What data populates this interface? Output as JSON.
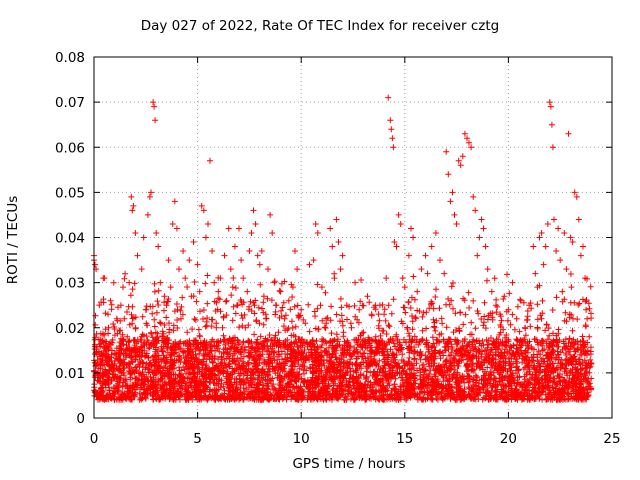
{
  "chart_data": {
    "type": "scatter",
    "title": "Day 027 of 2022, Rate Of TEC Index for receiver cztg",
    "xlabel": "GPS time / hours",
    "ylabel": "ROTI / TECUs",
    "xlim": [
      0,
      25
    ],
    "ylim": [
      0,
      0.08
    ],
    "xticks": [
      0,
      5,
      10,
      15,
      20,
      25
    ],
    "xtick_labels": [
      "0",
      "5",
      "10",
      "15",
      "20",
      "25"
    ],
    "yticks": [
      0,
      0.01,
      0.02,
      0.03,
      0.04,
      0.05,
      0.06,
      0.07,
      0.08
    ],
    "ytick_labels": [
      "0",
      "0.01",
      "0.02",
      "0.03",
      "0.04",
      "0.05",
      "0.06",
      "0.07",
      "0.08"
    ],
    "grid": true,
    "marker": "+",
    "color": "#ff0000",
    "series": [
      {
        "name": "ROTI",
        "points": [
          [
            0.0,
            0.036
          ],
          [
            0.0,
            0.035
          ],
          [
            0.05,
            0.034
          ],
          [
            0.1,
            0.033
          ],
          [
            0.15,
            0.012
          ],
          [
            0.2,
            0.01
          ],
          [
            0.3,
            0.008
          ],
          [
            0.4,
            0.006
          ],
          [
            0.45,
            0.031
          ],
          [
            0.5,
            0.031
          ],
          [
            0.6,
            0.015
          ],
          [
            0.7,
            0.02
          ],
          [
            0.8,
            0.026
          ],
          [
            0.9,
            0.005
          ],
          [
            1.0,
            0.012
          ],
          [
            1.1,
            0.022
          ],
          [
            1.2,
            0.009
          ],
          [
            1.3,
            0.025
          ],
          [
            1.4,
            0.029
          ],
          [
            1.5,
            0.007
          ],
          [
            1.6,
            0.018
          ],
          [
            1.7,
            0.03
          ],
          [
            1.8,
            0.049
          ],
          [
            1.85,
            0.046
          ],
          [
            1.9,
            0.047
          ],
          [
            2.0,
            0.041
          ],
          [
            2.1,
            0.036
          ],
          [
            2.2,
            0.015
          ],
          [
            2.3,
            0.033
          ],
          [
            2.4,
            0.04
          ],
          [
            2.5,
            0.024
          ],
          [
            2.6,
            0.045
          ],
          [
            2.7,
            0.049
          ],
          [
            2.75,
            0.05
          ],
          [
            2.85,
            0.07
          ],
          [
            2.9,
            0.069
          ],
          [
            2.95,
            0.066
          ],
          [
            3.0,
            0.041
          ],
          [
            3.1,
            0.038
          ],
          [
            3.2,
            0.03
          ],
          [
            3.3,
            0.018
          ],
          [
            3.4,
            0.027
          ],
          [
            3.5,
            0.025
          ],
          [
            3.6,
            0.035
          ],
          [
            3.7,
            0.029
          ],
          [
            3.8,
            0.043
          ],
          [
            3.9,
            0.048
          ],
          [
            4.0,
            0.042
          ],
          [
            4.1,
            0.033
          ],
          [
            4.2,
            0.022
          ],
          [
            4.3,
            0.037
          ],
          [
            4.4,
            0.031
          ],
          [
            4.5,
            0.019
          ],
          [
            4.6,
            0.035
          ],
          [
            4.7,
            0.027
          ],
          [
            4.8,
            0.039
          ],
          [
            4.9,
            0.014
          ],
          [
            5.0,
            0.034
          ],
          [
            5.1,
            0.028
          ],
          [
            5.2,
            0.047
          ],
          [
            5.3,
            0.046
          ],
          [
            5.4,
            0.04
          ],
          [
            5.5,
            0.043
          ],
          [
            5.6,
            0.057
          ],
          [
            5.7,
            0.037
          ],
          [
            5.8,
            0.03
          ],
          [
            5.9,
            0.021
          ],
          [
            6.0,
            0.028
          ],
          [
            6.1,
            0.031
          ],
          [
            6.2,
            0.02
          ],
          [
            6.3,
            0.036
          ],
          [
            6.4,
            0.026
          ],
          [
            6.5,
            0.042
          ],
          [
            6.6,
            0.033
          ],
          [
            6.7,
            0.029
          ],
          [
            6.8,
            0.038
          ],
          [
            6.9,
            0.025
          ],
          [
            7.0,
            0.042
          ],
          [
            7.1,
            0.035
          ],
          [
            7.2,
            0.031
          ],
          [
            7.3,
            0.02
          ],
          [
            7.4,
            0.028
          ],
          [
            7.5,
            0.037
          ],
          [
            7.6,
            0.041
          ],
          [
            7.7,
            0.046
          ],
          [
            7.8,
            0.043
          ],
          [
            7.9,
            0.036
          ],
          [
            8.0,
            0.034
          ],
          [
            8.1,
            0.037
          ],
          [
            8.2,
            0.027
          ],
          [
            8.3,
            0.022
          ],
          [
            8.4,
            0.033
          ],
          [
            8.5,
            0.045
          ],
          [
            8.6,
            0.041
          ],
          [
            8.7,
            0.03
          ],
          [
            8.8,
            0.025
          ],
          [
            8.9,
            0.019
          ],
          [
            9.0,
            0.028
          ],
          [
            9.2,
            0.022
          ],
          [
            9.4,
            0.026
          ],
          [
            9.6,
            0.029
          ],
          [
            9.7,
            0.037
          ],
          [
            9.8,
            0.033
          ],
          [
            10.0,
            0.024
          ],
          [
            10.2,
            0.021
          ],
          [
            10.4,
            0.034
          ],
          [
            10.6,
            0.035
          ],
          [
            10.7,
            0.043
          ],
          [
            10.8,
            0.041
          ],
          [
            11.0,
            0.029
          ],
          [
            11.2,
            0.022
          ],
          [
            11.4,
            0.042
          ],
          [
            11.5,
            0.038
          ],
          [
            11.6,
            0.031
          ],
          [
            11.7,
            0.044
          ],
          [
            11.8,
            0.039
          ],
          [
            11.9,
            0.033
          ],
          [
            12.0,
            0.036
          ],
          [
            12.2,
            0.025
          ],
          [
            12.4,
            0.021
          ],
          [
            12.6,
            0.03
          ],
          [
            12.8,
            0.024
          ],
          [
            13.0,
            0.019
          ],
          [
            13.2,
            0.027
          ],
          [
            13.4,
            0.023
          ],
          [
            13.6,
            0.018
          ],
          [
            13.8,
            0.025
          ],
          [
            14.0,
            0.023
          ],
          [
            14.1,
            0.031
          ],
          [
            14.2,
            0.071
          ],
          [
            14.3,
            0.066
          ],
          [
            14.35,
            0.064
          ],
          [
            14.4,
            0.062
          ],
          [
            14.45,
            0.06
          ],
          [
            14.5,
            0.039
          ],
          [
            14.6,
            0.038
          ],
          [
            14.7,
            0.045
          ],
          [
            14.8,
            0.043
          ],
          [
            14.9,
            0.031
          ],
          [
            15.0,
            0.029
          ],
          [
            15.2,
            0.036
          ],
          [
            15.3,
            0.042
          ],
          [
            15.4,
            0.04
          ],
          [
            15.6,
            0.028
          ],
          [
            15.8,
            0.033
          ],
          [
            16.0,
            0.036
          ],
          [
            16.1,
            0.032
          ],
          [
            16.3,
            0.038
          ],
          [
            16.5,
            0.041
          ],
          [
            16.7,
            0.035
          ],
          [
            16.9,
            0.032
          ],
          [
            17.0,
            0.059
          ],
          [
            17.1,
            0.054
          ],
          [
            17.2,
            0.048
          ],
          [
            17.3,
            0.05
          ],
          [
            17.4,
            0.045
          ],
          [
            17.5,
            0.043
          ],
          [
            17.6,
            0.057
          ],
          [
            17.7,
            0.056
          ],
          [
            17.8,
            0.058
          ],
          [
            17.9,
            0.063
          ],
          [
            18.0,
            0.062
          ],
          [
            18.1,
            0.061
          ],
          [
            18.2,
            0.06
          ],
          [
            18.3,
            0.049
          ],
          [
            18.4,
            0.046
          ],
          [
            18.5,
            0.036
          ],
          [
            18.6,
            0.04
          ],
          [
            18.7,
            0.044
          ],
          [
            18.8,
            0.042
          ],
          [
            18.9,
            0.038
          ],
          [
            19.0,
            0.033
          ],
          [
            19.2,
            0.028
          ],
          [
            19.4,
            0.025
          ],
          [
            19.6,
            0.023
          ],
          [
            19.8,
            0.027
          ],
          [
            20.0,
            0.024
          ],
          [
            20.2,
            0.03
          ],
          [
            20.4,
            0.022
          ],
          [
            20.6,
            0.026
          ],
          [
            20.8,
            0.02
          ],
          [
            21.0,
            0.025
          ],
          [
            21.2,
            0.038
          ],
          [
            21.3,
            0.032
          ],
          [
            21.4,
            0.029
          ],
          [
            21.5,
            0.04
          ],
          [
            21.6,
            0.041
          ],
          [
            21.7,
            0.034
          ],
          [
            21.8,
            0.038
          ],
          [
            21.9,
            0.043
          ],
          [
            22.0,
            0.07
          ],
          [
            22.05,
            0.069
          ],
          [
            22.1,
            0.065
          ],
          [
            22.15,
            0.06
          ],
          [
            22.2,
            0.044
          ],
          [
            22.3,
            0.037
          ],
          [
            22.4,
            0.042
          ],
          [
            22.5,
            0.035
          ],
          [
            22.6,
            0.028
          ],
          [
            22.7,
            0.041
          ],
          [
            22.8,
            0.033
          ],
          [
            22.9,
            0.063
          ],
          [
            23.0,
            0.04
          ],
          [
            23.1,
            0.039
          ],
          [
            23.2,
            0.05
          ],
          [
            23.3,
            0.049
          ],
          [
            23.4,
            0.044
          ],
          [
            23.5,
            0.036
          ],
          [
            23.6,
            0.038
          ],
          [
            23.7,
            0.031
          ],
          [
            23.8,
            0.022
          ],
          [
            23.9,
            0.018
          ],
          [
            24.0,
            0.012
          ]
        ]
      }
    ],
    "background_cloud": {
      "description_of_density": "dense baseline band",
      "x_range": [
        0,
        24
      ],
      "typical_range": [
        0.004,
        0.022
      ],
      "seed": 27
    }
  }
}
